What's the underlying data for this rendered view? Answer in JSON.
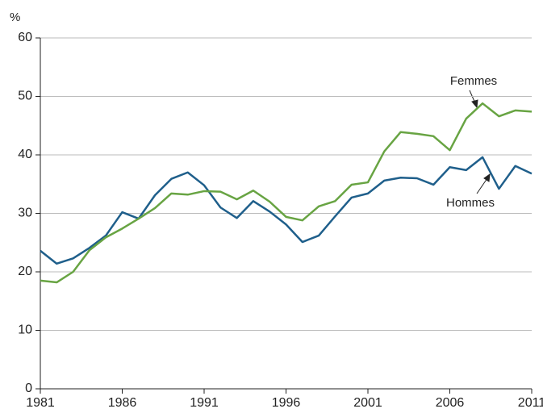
{
  "chart_data": {
    "type": "line",
    "y_label": "%",
    "x": [
      1981,
      1982,
      1983,
      1984,
      1985,
      1986,
      1987,
      1988,
      1989,
      1990,
      1991,
      1992,
      1993,
      1994,
      1995,
      1996,
      1997,
      1998,
      1999,
      2000,
      2001,
      2002,
      2003,
      2004,
      2005,
      2006,
      2007,
      2008,
      2009,
      2010,
      2011
    ],
    "series": [
      {
        "name": "Hommes",
        "color": "#1f5f8b",
        "values": [
          23.6,
          21.4,
          22.3,
          24.1,
          26.2,
          30.2,
          29.1,
          33.1,
          35.9,
          37.0,
          34.8,
          31.0,
          29.2,
          32.1,
          30.3,
          28.1,
          25.1,
          26.2,
          29.5,
          32.7,
          33.4,
          35.6,
          36.1,
          36.0,
          34.9,
          37.9,
          37.4,
          39.6,
          34.2,
          38.1,
          36.8
        ]
      },
      {
        "name": "Femmes",
        "color": "#68a443",
        "values": [
          18.5,
          18.2,
          20.0,
          23.7,
          25.9,
          27.4,
          29.1,
          30.9,
          33.4,
          33.2,
          33.8,
          33.7,
          32.4,
          33.9,
          32.0,
          29.4,
          28.8,
          31.2,
          32.1,
          34.9,
          35.3,
          40.6,
          43.9,
          43.6,
          43.2,
          40.8,
          46.2,
          48.8,
          46.6,
          47.6,
          47.4
        ]
      }
    ],
    "xlim": [
      1981,
      2011
    ],
    "xticks": [
      1981,
      1986,
      1991,
      1996,
      2001,
      2006,
      2011
    ],
    "ylim": [
      0,
      60
    ],
    "yticks": [
      0,
      10,
      20,
      30,
      40,
      50,
      60
    ],
    "grid": true,
    "annotations": [
      "Femmes",
      "Hommes"
    ]
  }
}
